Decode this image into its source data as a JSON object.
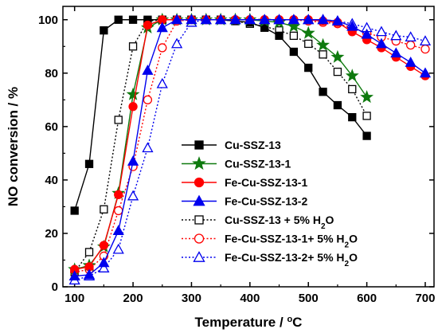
{
  "chart_data": {
    "type": "line",
    "xlabel": "Temperature / °C",
    "ylabel": "NO conversion / %",
    "xlim": [
      80,
      715
    ],
    "ylim": [
      0,
      105
    ],
    "xticks": [
      100,
      200,
      300,
      400,
      500,
      600,
      700
    ],
    "yticks": [
      0,
      20,
      40,
      60,
      80,
      100
    ],
    "legend_position": "bottom-center",
    "grid": false,
    "series": [
      {
        "name": "Cu-SSZ-13",
        "color": "#000000",
        "marker": "square",
        "filled": true,
        "dashed": false,
        "x": [
          100,
          125,
          150,
          175,
          200,
          225,
          250,
          275,
          300,
          325,
          350,
          375,
          400,
          425,
          450,
          475,
          500,
          525,
          550,
          575,
          600
        ],
        "y": [
          28.5,
          46,
          96,
          100,
          100,
          100,
          100,
          100,
          100,
          100,
          100,
          99.5,
          99,
          97,
          94,
          88,
          82,
          73,
          68,
          63.5,
          56.5
        ]
      },
      {
        "name": "Cu-SSZ-13-1",
        "color": "#0f7a0f",
        "marker": "star",
        "filled": true,
        "dashed": false,
        "x": [
          100,
          125,
          150,
          175,
          200,
          225,
          250,
          275,
          300,
          325,
          350,
          375,
          400,
          425,
          450,
          475,
          500,
          525,
          550,
          575,
          600
        ],
        "y": [
          6.5,
          8,
          15,
          35,
          72,
          97,
          100,
          100,
          100,
          100,
          100,
          100,
          100,
          99.5,
          99,
          97.5,
          95,
          90.5,
          86,
          79,
          71
        ]
      },
      {
        "name": "Fe-Cu-SSZ-13-1",
        "color": "#ff0000",
        "marker": "circle",
        "filled": true,
        "dashed": false,
        "x": [
          100,
          125,
          150,
          175,
          200,
          225,
          250,
          275,
          300,
          325,
          350,
          375,
          400,
          425,
          450,
          475,
          500,
          525,
          550,
          575,
          600,
          625,
          650,
          675,
          700
        ],
        "y": [
          6.5,
          7.5,
          15.5,
          34.5,
          67.5,
          98,
          100,
          100,
          100,
          100,
          100,
          100,
          100,
          100,
          100,
          100,
          100,
          99.5,
          99,
          95.5,
          92.5,
          89.5,
          86,
          82.5,
          79
        ]
      },
      {
        "name": "Fe-Cu-SSZ-13-2",
        "color": "#0000ee",
        "marker": "triangle",
        "filled": true,
        "dashed": false,
        "x": [
          100,
          125,
          150,
          175,
          200,
          225,
          250,
          275,
          300,
          325,
          350,
          375,
          400,
          425,
          450,
          475,
          500,
          525,
          550,
          575,
          600,
          625,
          650,
          675,
          700
        ],
        "y": [
          4,
          4.5,
          9,
          21,
          47,
          81,
          97,
          100,
          100,
          100,
          100,
          100,
          100,
          100,
          100,
          100,
          100,
          100,
          99.5,
          97.5,
          94.5,
          91,
          87.5,
          84,
          80
        ]
      },
      {
        "name": "Cu-SSZ-13 + 5% H₂O",
        "color": "#000000",
        "marker": "square",
        "filled": false,
        "dashed": true,
        "x": [
          100,
          125,
          150,
          175,
          200,
          225,
          250,
          275,
          300,
          325,
          350,
          375,
          400,
          425,
          450,
          475,
          500,
          525,
          550,
          575,
          600
        ],
        "y": [
          5.5,
          13,
          29,
          62.5,
          90,
          99.5,
          100,
          100,
          100,
          100,
          100,
          99.5,
          98.5,
          97.5,
          96,
          94,
          91,
          87,
          80.5,
          74,
          64
        ]
      },
      {
        "name": "Fe-Cu-SSZ-13-1+ 5% H₂O",
        "color": "#ff0000",
        "marker": "circle",
        "filled": false,
        "dashed": true,
        "x": [
          100,
          125,
          150,
          175,
          200,
          225,
          250,
          275,
          300,
          325,
          350,
          375,
          400,
          425,
          450,
          475,
          500,
          525,
          550,
          575,
          600,
          625,
          650,
          675,
          700
        ],
        "y": [
          5.5,
          6.5,
          11.5,
          28.5,
          45,
          70,
          89.5,
          99.5,
          100,
          100,
          100,
          100,
          100,
          100,
          100,
          100,
          99.5,
          99,
          98.5,
          97,
          95,
          93.5,
          92,
          90.5,
          89
        ]
      },
      {
        "name": "Fe-Cu-SSZ-13-2+ 5% H₂O",
        "color": "#0000ee",
        "marker": "triangle",
        "filled": false,
        "dashed": true,
        "x": [
          100,
          125,
          150,
          175,
          200,
          225,
          250,
          275,
          300,
          325,
          350,
          375,
          400,
          425,
          450,
          475,
          500,
          525,
          550,
          575,
          600,
          625,
          650,
          675,
          700
        ],
        "y": [
          2.5,
          4,
          7,
          14,
          34,
          52,
          76,
          91,
          99,
          100,
          100,
          100,
          100,
          100,
          100,
          100,
          100,
          100,
          99.5,
          98.5,
          97,
          95.5,
          94,
          93.5,
          92
        ]
      }
    ]
  }
}
